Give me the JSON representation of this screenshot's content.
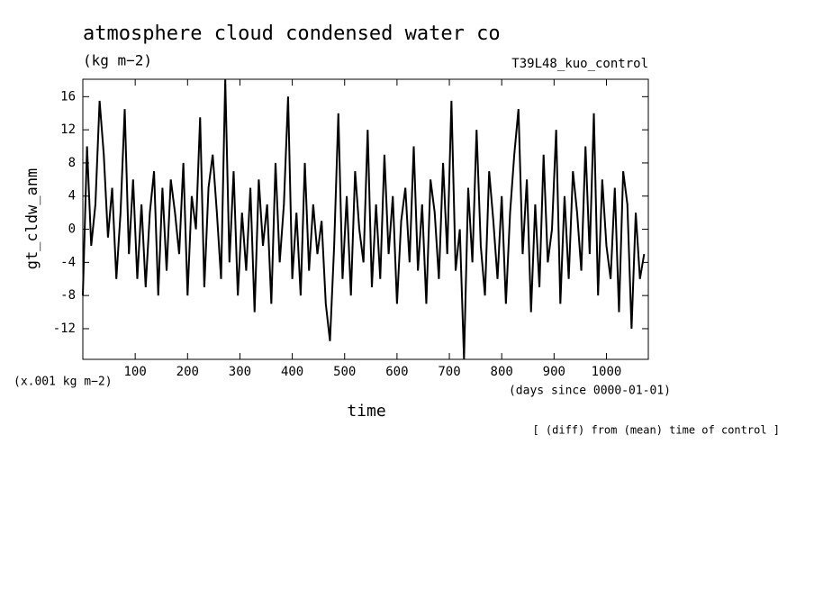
{
  "chart_data": {
    "type": "line",
    "title": "atmosphere cloud condensed water co",
    "subtitle": "(kg m−2)",
    "run_label": "T39L48_kuo_control",
    "y_unit_note": "(x.001 kg m−2)",
    "x_unit_note": "(days since 0000-01-01)",
    "xlabel": "time",
    "ylabel": "gt_cldw_anm",
    "footnote": "[ (diff) from (mean) time of control ]",
    "color": "#000000",
    "xlim": [
      0,
      1080
    ],
    "ylim": [
      -15.7,
      18.1
    ],
    "xticks": [
      100,
      200,
      300,
      400,
      500,
      600,
      700,
      800,
      900,
      1000
    ],
    "yticks": [
      -12,
      -8,
      -4,
      0,
      4,
      8,
      12,
      16
    ],
    "x": [
      0,
      8,
      16,
      24,
      32,
      40,
      48,
      56,
      64,
      72,
      80,
      88,
      96,
      104,
      112,
      120,
      128,
      136,
      144,
      152,
      160,
      168,
      176,
      184,
      192,
      200,
      208,
      216,
      224,
      232,
      240,
      248,
      256,
      264,
      272,
      280,
      288,
      296,
      304,
      312,
      320,
      328,
      336,
      344,
      352,
      360,
      368,
      376,
      384,
      392,
      400,
      408,
      416,
      424,
      432,
      440,
      448,
      456,
      464,
      472,
      480,
      488,
      496,
      504,
      512,
      520,
      528,
      536,
      544,
      552,
      560,
      568,
      576,
      584,
      592,
      600,
      608,
      616,
      624,
      632,
      640,
      648,
      656,
      664,
      672,
      680,
      688,
      696,
      704,
      712,
      720,
      728,
      736,
      744,
      752,
      760,
      768,
      776,
      784,
      792,
      800,
      808,
      816,
      824,
      832,
      840,
      848,
      856,
      864,
      872,
      880,
      888,
      896,
      904,
      912,
      920,
      928,
      936,
      944,
      952,
      960,
      968,
      976,
      984,
      992,
      1000,
      1008,
      1016,
      1024,
      1032,
      1040,
      1048,
      1056,
      1064,
      1072
    ],
    "values": [
      -8,
      10,
      -2,
      3,
      15.5,
      9,
      -1,
      5,
      -6,
      2,
      14.5,
      -3,
      6,
      -6,
      3,
      -7,
      2,
      7,
      -8,
      5,
      -5,
      6,
      2,
      -3,
      8,
      -8,
      4,
      0,
      13.5,
      -7,
      5,
      9,
      2,
      -6,
      18.1,
      -4,
      7,
      -8,
      2,
      -5,
      5,
      -10,
      6,
      -2,
      3,
      -9,
      8,
      -4,
      3,
      16,
      -6,
      2,
      -8,
      8,
      -5,
      3,
      -3,
      1,
      -9,
      -13.5,
      -2,
      14,
      -6,
      4,
      -8,
      7,
      0,
      -4,
      12,
      -7,
      3,
      -6,
      9,
      -3,
      4,
      -9,
      1,
      5,
      -4,
      10,
      -5,
      3,
      -9,
      6,
      2,
      -6,
      8,
      -3,
      15.5,
      -5,
      0,
      -15.7,
      5,
      -4,
      12,
      -2,
      -8,
      7,
      1,
      -6,
      4,
      -9,
      2,
      9,
      14.5,
      -3,
      6,
      -10,
      3,
      -7,
      9,
      -4,
      0,
      12,
      -9,
      4,
      -6,
      7,
      2,
      -5,
      10,
      -3,
      14,
      -8,
      6,
      -2,
      -6,
      5,
      -10,
      7,
      3,
      -12,
      2,
      -6,
      -3
    ]
  }
}
